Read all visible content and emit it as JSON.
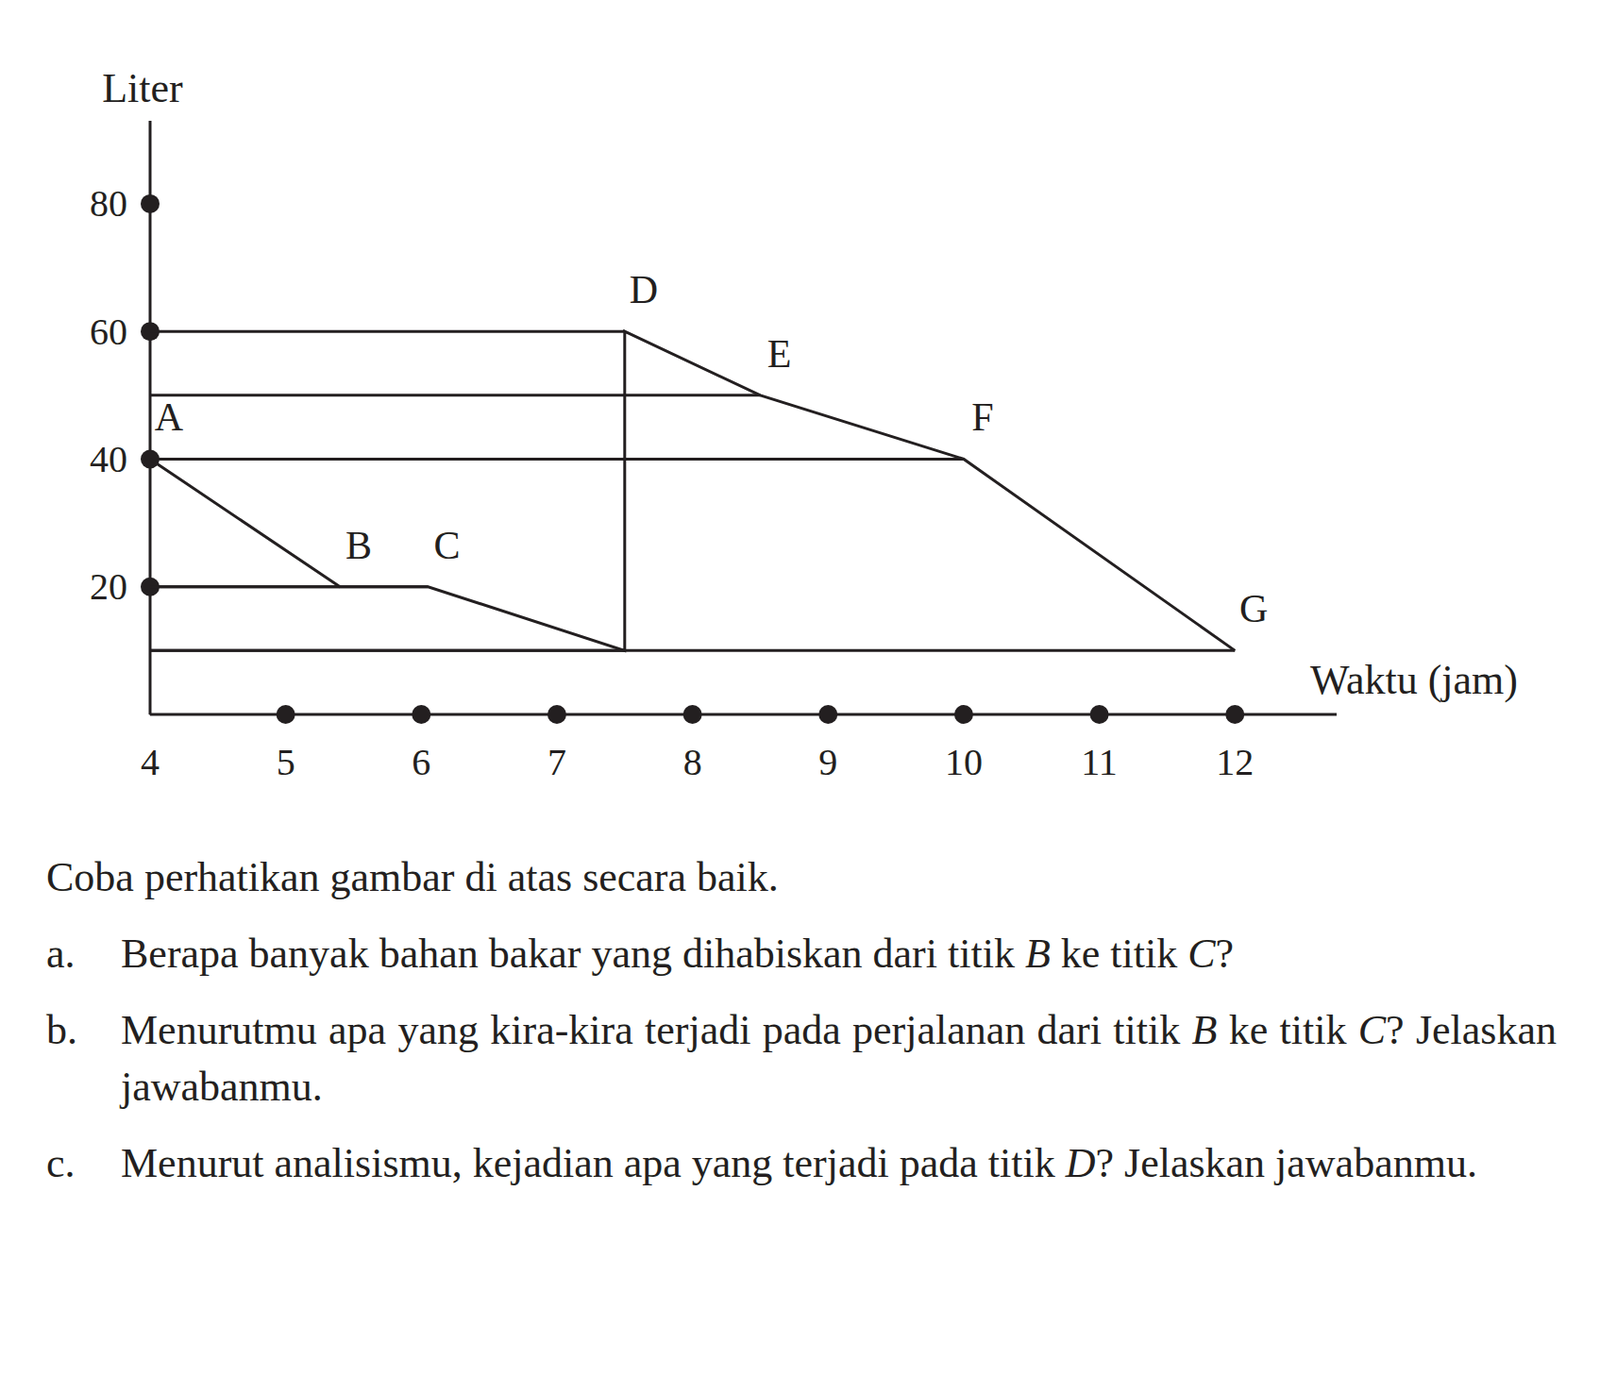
{
  "chart_data": {
    "type": "line",
    "x_label": "Waktu (jam)",
    "y_label": "Liter",
    "series": [
      {
        "x": [
          4,
          5.4,
          6.05,
          7.5,
          7.5,
          8.5,
          10,
          12
        ],
        "values": [
          40,
          20,
          20,
          10,
          60,
          50,
          40,
          10
        ],
        "labels": [
          "A",
          "B",
          "C",
          null,
          "D",
          "E",
          "F",
          "G"
        ],
        "color": "#231f20",
        "marker": "none"
      }
    ],
    "xlim": [
      4,
      12.75
    ],
    "ylim": [
      0,
      93
    ],
    "xticks": [
      4,
      5,
      6,
      7,
      8,
      9,
      10,
      11,
      12
    ],
    "yticks": [
      20,
      40,
      60,
      80
    ]
  },
  "questions": {
    "intro": "Coba perhatikan  gambar di atas secara baik.",
    "items": [
      {
        "label": "a.",
        "parts": [
          "Berapa banyak bahan bakar yang dihabiskan dari titik ",
          {
            "text": "B",
            "italic": true
          },
          " ke titik ",
          {
            "text": "C",
            "italic": true
          },
          "?"
        ]
      },
      {
        "label": "b.",
        "parts": [
          "Menurutmu apa yang kira-kira terjadi pada perjalanan dari titik ",
          {
            "text": "B",
            "italic": true
          },
          " ke titik ",
          {
            "text": "C",
            "italic": true
          },
          "? Jelaskan jawabanmu."
        ]
      },
      {
        "label": "c.",
        "parts": [
          "Menurut analisismu, kejadian apa yang terjadi pada titik ",
          {
            "text": "D",
            "italic": true
          },
          "? Jelaskan jawabanmu."
        ]
      }
    ]
  }
}
